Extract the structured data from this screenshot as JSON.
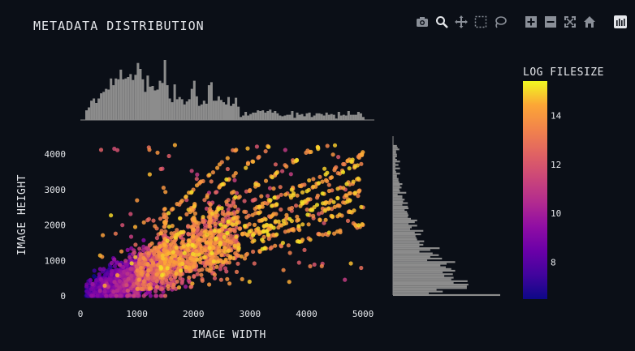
{
  "title": "METADATA DISTRIBUTION",
  "toolbar": {
    "items": [
      {
        "name": "camera-icon",
        "active": false
      },
      {
        "name": "zoom-icon",
        "active": true
      },
      {
        "name": "pan-icon",
        "active": false
      },
      {
        "name": "box-select-icon",
        "active": false
      },
      {
        "name": "lasso-select-icon",
        "active": false
      },
      {
        "name": "zoom-in-icon",
        "active": false
      },
      {
        "name": "zoom-out-icon",
        "active": false
      },
      {
        "name": "autoscale-icon",
        "active": false
      },
      {
        "name": "reset-axes-icon",
        "active": false
      },
      {
        "name": "logo-icon",
        "active": false
      }
    ]
  },
  "chart_data": {
    "type": "scatter",
    "title": "METADATA DISTRIBUTION",
    "xlabel": "IMAGE WIDTH",
    "ylabel": "IMAGE HEIGHT",
    "xlim": [
      0,
      5200
    ],
    "ylim": [
      -150,
      4300
    ],
    "xticks": [
      "0",
      "1000",
      "2000",
      "3000",
      "4000",
      "5000"
    ],
    "xtick_values": [
      0,
      1000,
      2000,
      3000,
      4000,
      5000
    ],
    "yticks": [
      "0",
      "1000",
      "2000",
      "3000",
      "4000"
    ],
    "ytick_values": [
      0,
      1000,
      2000,
      3000,
      4000
    ],
    "colorbar": {
      "title": "LOG FILESIZE",
      "range": [
        6.5,
        15.4
      ],
      "ticks": [
        "8",
        "10",
        "12",
        "14"
      ],
      "tick_values": [
        8,
        10,
        12,
        14
      ],
      "colorscale": "plasma"
    },
    "marginal_x": "histogram",
    "marginal_y": "histogram",
    "histogram_color": "#8c8c8c",
    "grid": false,
    "point_count_estimate": 2500,
    "clusters": [
      {
        "desc": "dense low-resolution cluster",
        "x_center": 900,
        "y_center": 700,
        "color_value_range": [
          7,
          12
        ]
      },
      {
        "desc": "diagonal aspect-ratio lines",
        "x_range": [
          1500,
          5000
        ],
        "y_range": [
          1000,
          4000
        ],
        "color_value_range": [
          12,
          15
        ]
      }
    ]
  }
}
